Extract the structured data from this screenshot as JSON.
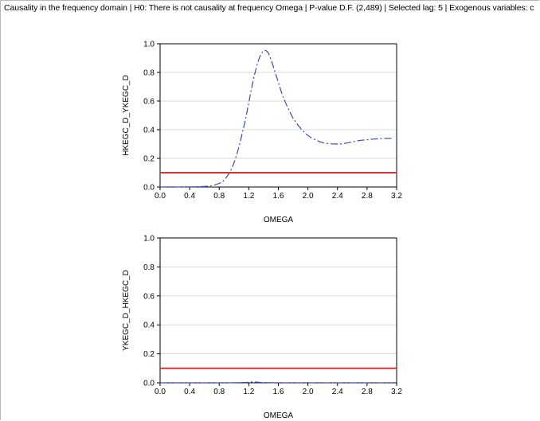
{
  "header": {
    "text": "Causality in the frequency domain | H0: There is not causality at frequency Omega | P-value D.F. (2,489) | Selected lag: 5 | Exogenous variables: c"
  },
  "colors": {
    "curve": "#3b4ba8",
    "threshold": "#e03131",
    "grid": "#d8d8d8",
    "axis": "#000000"
  },
  "chart_data": [
    {
      "type": "line",
      "ylabel": "HKEGC_D_YKEGC_D",
      "xlabel": "OMEGA",
      "xlim": [
        0.0,
        3.2
      ],
      "ylim": [
        0.0,
        1.0
      ],
      "xticks": [
        "0.0",
        "0.4",
        "0.8",
        "1.2",
        "1.6",
        "2.0",
        "2.4",
        "2.8",
        "3.2"
      ],
      "yticks": [
        "0.0",
        "0.2",
        "0.4",
        "0.6",
        "0.8",
        "1.0"
      ],
      "grid": true,
      "threshold": 0.1,
      "series": [
        {
          "style": "dashed",
          "x": [
            0.0,
            0.2,
            0.4,
            0.6,
            0.7,
            0.8,
            0.85,
            0.9,
            0.95,
            1.0,
            1.05,
            1.1,
            1.15,
            1.2,
            1.25,
            1.3,
            1.35,
            1.4,
            1.45,
            1.5,
            1.55,
            1.6,
            1.65,
            1.7,
            1.75,
            1.8,
            1.9,
            2.0,
            2.1,
            2.2,
            2.3,
            2.4,
            2.5,
            2.6,
            2.7,
            2.8,
            2.9,
            3.0,
            3.1,
            3.14
          ],
          "values": [
            0.0,
            0.0,
            0.001,
            0.004,
            0.01,
            0.025,
            0.04,
            0.07,
            0.11,
            0.17,
            0.25,
            0.35,
            0.46,
            0.59,
            0.72,
            0.83,
            0.91,
            0.95,
            0.945,
            0.89,
            0.81,
            0.73,
            0.65,
            0.585,
            0.53,
            0.48,
            0.41,
            0.36,
            0.33,
            0.31,
            0.302,
            0.3,
            0.305,
            0.315,
            0.325,
            0.33,
            0.335,
            0.338,
            0.34,
            0.34
          ]
        }
      ]
    },
    {
      "type": "line",
      "ylabel": "YKEGC_D_HKEGC_D",
      "xlabel": "OMEGA",
      "xlim": [
        0.0,
        3.2
      ],
      "ylim": [
        0.0,
        1.0
      ],
      "xticks": [
        "0.0",
        "0.4",
        "0.8",
        "1.2",
        "1.6",
        "2.0",
        "2.4",
        "2.8",
        "3.2"
      ],
      "yticks": [
        "0.0",
        "0.2",
        "0.4",
        "0.6",
        "0.8",
        "1.0"
      ],
      "grid": true,
      "threshold": 0.1,
      "series": [
        {
          "style": "dashed",
          "x": [
            0.0,
            0.4,
            0.8,
            1.0,
            1.1,
            1.2,
            1.25,
            1.3,
            1.35,
            1.4,
            1.5,
            1.6,
            2.0,
            2.4,
            2.8,
            3.14
          ],
          "values": [
            0.0,
            0.0,
            0.0,
            0.001,
            0.002,
            0.004,
            0.006,
            0.005,
            0.003,
            0.002,
            0.001,
            0.0,
            0.0,
            0.0,
            0.0,
            0.0
          ]
        }
      ]
    }
  ]
}
